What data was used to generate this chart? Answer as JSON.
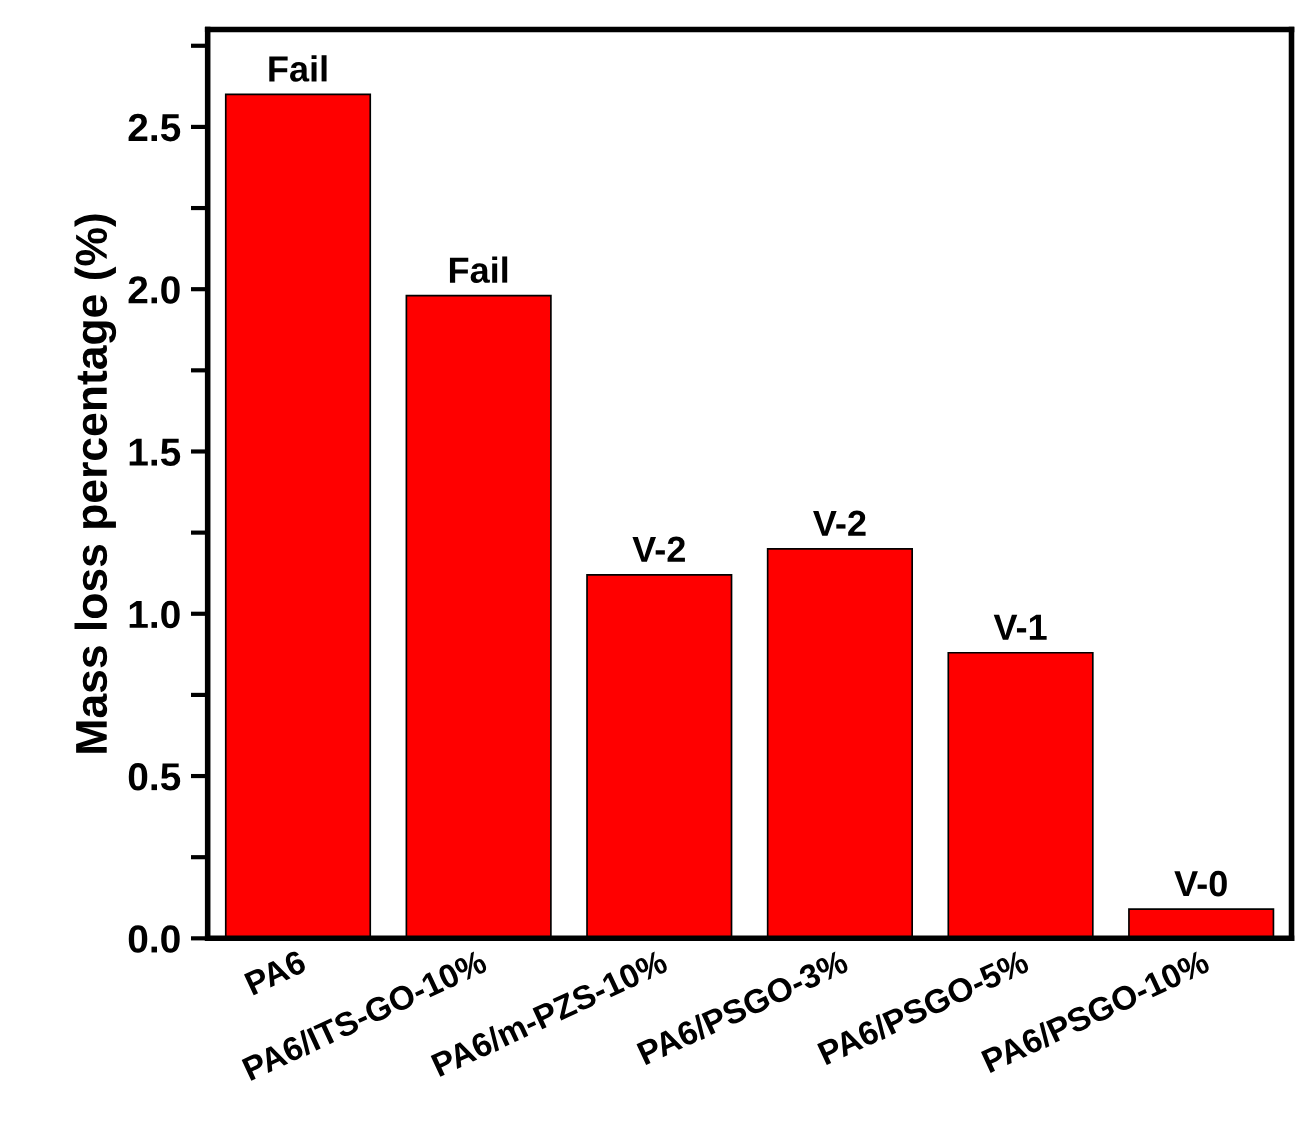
{
  "chart_data": {
    "type": "bar",
    "ylabel": "Mass loss percentage (%)",
    "categories": [
      "PA6",
      "PA6/ITS-GO-10%",
      "PA6/m-PZS-10%",
      "PA6/PSGO-3%",
      "PA6/PSGO-5%",
      "PA6/PSGO-10%"
    ],
    "values": [
      2.6,
      1.98,
      1.12,
      1.2,
      0.88,
      0.09
    ],
    "value_labels": [
      "Fail",
      "Fail",
      "V-2",
      "V-2",
      "V-1",
      "V-0"
    ],
    "color": "#ff0000",
    "ylim": [
      0,
      2.8
    ],
    "yticks": [
      {
        "value": 0,
        "label": "0.0"
      },
      {
        "value": 0.25,
        "label": null
      },
      0.5,
      {
        "value": 0.75,
        "label": null
      },
      {
        "value": 1,
        "label": "1.0"
      },
      {
        "value": 1.25,
        "label": null
      },
      1.5,
      {
        "value": 1.75,
        "label": null
      },
      {
        "value": 2,
        "label": "2.0"
      },
      {
        "value": 2.25,
        "label": null
      },
      2.5,
      {
        "value": 2.75,
        "label": null
      }
    ],
    "grid": false,
    "legend": false
  }
}
